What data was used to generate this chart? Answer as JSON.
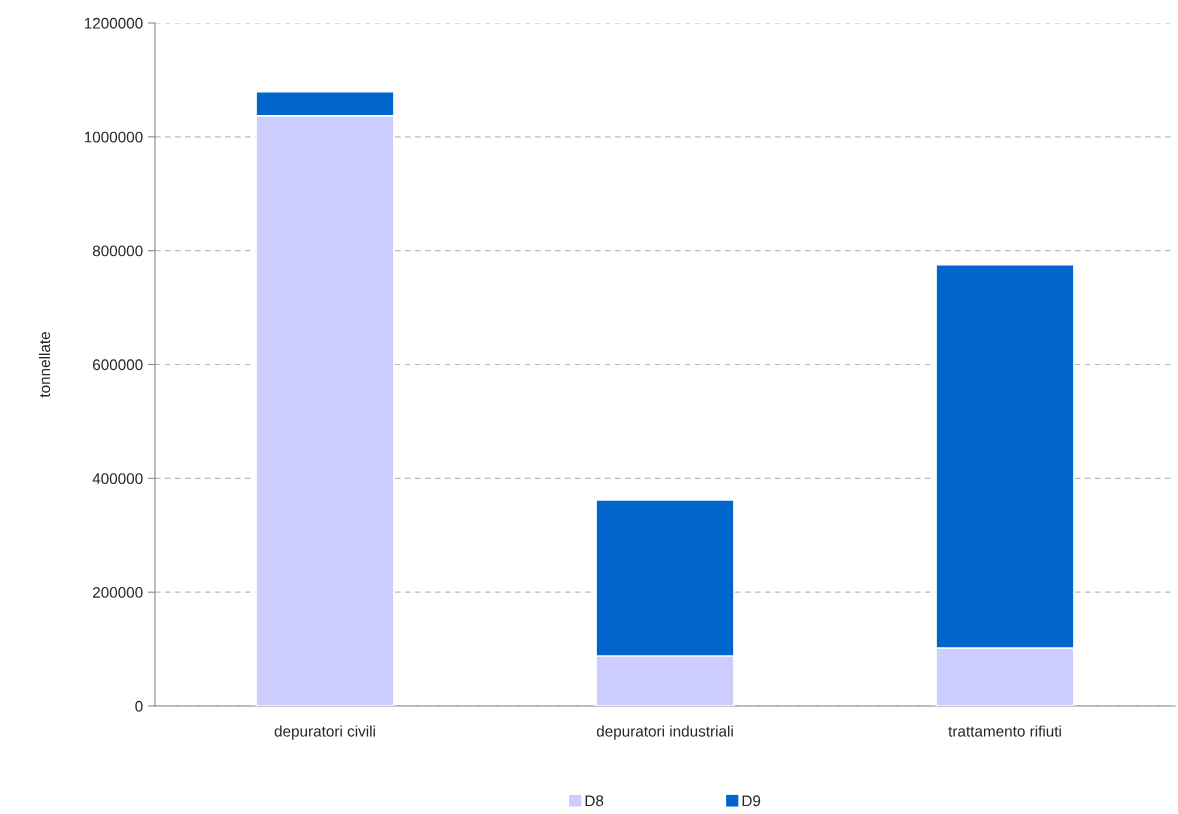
{
  "chart_data": {
    "type": "bar",
    "stacked": true,
    "ylabel": "tonnellate",
    "categories": [
      "depuratori civili",
      "depuratori industriali",
      "trattamento rifiuti"
    ],
    "series": [
      {
        "name": "D8",
        "color": "#ccccff",
        "values": [
          1037000,
          88000,
          102000
        ]
      },
      {
        "name": "D9",
        "color": "#0066cc",
        "values": [
          42000,
          274000,
          673000
        ]
      }
    ],
    "ylim": [
      0,
      1200000
    ],
    "yticks": [
      0,
      200000,
      400000,
      600000,
      800000,
      1000000,
      1200000
    ],
    "grid": "y",
    "legend": "bottom"
  }
}
